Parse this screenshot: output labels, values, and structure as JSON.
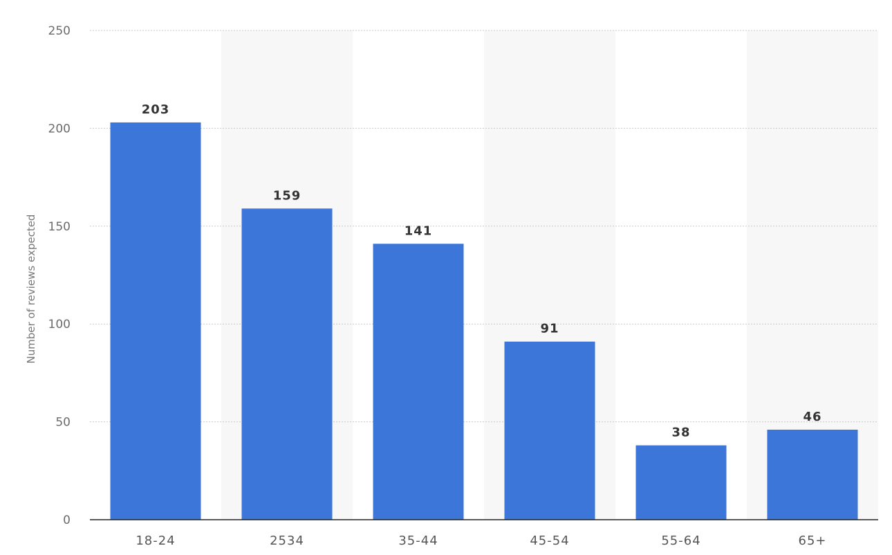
{
  "chart_data": {
    "type": "bar",
    "categories": [
      "18-24",
      "2534",
      "35-44",
      "45-54",
      "55-64",
      "65+"
    ],
    "values": [
      203,
      159,
      141,
      91,
      38,
      46
    ],
    "value_labels": [
      "203",
      "159",
      "141",
      "91",
      "38",
      "46"
    ],
    "title": "",
    "xlabel": "",
    "ylabel": "Number of reviews expected",
    "ylim": [
      0,
      250
    ],
    "yticks": [
      0,
      50,
      100,
      150,
      200,
      250
    ],
    "ytick_labels": [
      "0",
      "50",
      "100",
      "150",
      "200",
      "250"
    ],
    "grid": true,
    "legend": "none",
    "colors": {
      "bar": "#3c76d8",
      "alternate_band": "#f7f7f7"
    }
  }
}
